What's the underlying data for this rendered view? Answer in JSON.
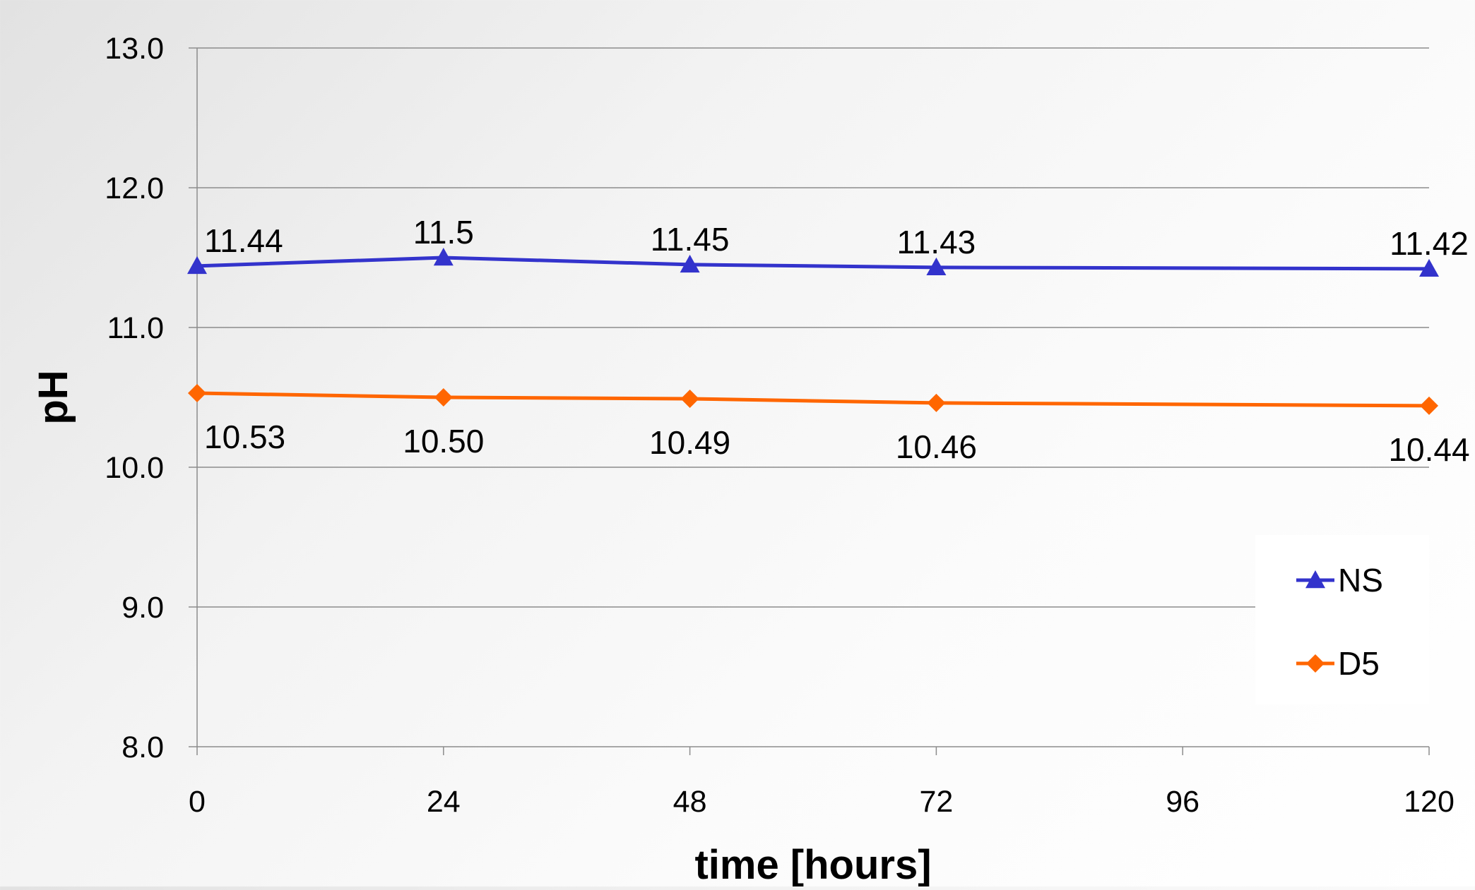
{
  "chart_data": {
    "type": "line",
    "title": "",
    "xlabel": "time [hours]",
    "ylabel": "pH",
    "xlim": [
      0,
      120
    ],
    "ylim": [
      8.0,
      13.0
    ],
    "x_ticks": [
      0,
      24,
      48,
      72,
      96,
      120
    ],
    "x_tick_labels": [
      "0",
      "24",
      "48",
      "72",
      "96",
      "120"
    ],
    "y_ticks": [
      8.0,
      9.0,
      10.0,
      11.0,
      12.0,
      13.0
    ],
    "y_tick_labels": [
      "8.0",
      "9.0",
      "10.0",
      "11.0",
      "12.0",
      "13.0"
    ],
    "grid": "horizontal",
    "legend_position": "right",
    "series": [
      {
        "name": "NS",
        "color": "#3333cc",
        "marker": "triangle",
        "x": [
          0,
          24,
          48,
          72,
          120
        ],
        "y": [
          11.44,
          11.5,
          11.45,
          11.43,
          11.42
        ],
        "data_labels": [
          "11.44",
          "11.5",
          "11.45",
          "11.43",
          "11.42"
        ],
        "label_placement": "above"
      },
      {
        "name": "D5",
        "color": "#ff6600",
        "marker": "diamond",
        "x": [
          0,
          24,
          48,
          72,
          120
        ],
        "y": [
          10.53,
          10.5,
          10.49,
          10.46,
          10.44
        ],
        "data_labels": [
          "10.53",
          "10.50",
          "10.49",
          "10.46",
          "10.44"
        ],
        "label_placement": "below"
      }
    ]
  }
}
